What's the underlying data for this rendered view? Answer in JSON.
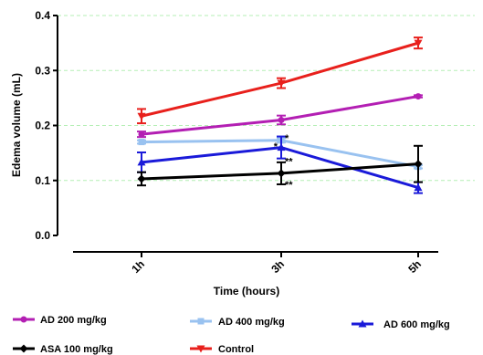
{
  "chart_data": {
    "type": "line",
    "categories": [
      "1h",
      "3h",
      "5h"
    ],
    "xlabel": "Time (hours)",
    "ylabel": "Edema volume (mL)",
    "ylim": [
      0.0,
      0.4
    ],
    "yticks": [
      "0.0",
      "0.1",
      "0.2",
      "0.3",
      "0.4"
    ],
    "grid": "horizontal dashed",
    "legend_position": "bottom",
    "series": [
      {
        "name": "AD 200 mg/kg",
        "color": "#b31fb3",
        "marker": "circle",
        "values": [
          0.184,
          0.21,
          0.253
        ],
        "errors": [
          0.005,
          0.008,
          0.002
        ]
      },
      {
        "name": "AD 400 mg/kg",
        "color": "#99c2f0",
        "marker": "square",
        "values": [
          0.17,
          0.173,
          0.125
        ],
        "errors": [
          0.003,
          0.004,
          0.003
        ]
      },
      {
        "name": "AD 600 mg/kg",
        "color": "#1a1ad9",
        "marker": "triangle-up",
        "values": [
          0.133,
          0.16,
          0.087
        ],
        "errors": [
          0.018,
          0.02,
          0.01
        ]
      },
      {
        "name": "ASA 100 mg/kg",
        "color": "#000000",
        "marker": "diamond",
        "values": [
          0.103,
          0.113,
          0.13
        ],
        "errors": [
          0.012,
          0.02,
          0.033
        ]
      },
      {
        "name": "Control",
        "color": "#e8201c",
        "marker": "triangle-down",
        "values": [
          0.217,
          0.277,
          0.35
        ],
        "errors": [
          0.013,
          0.009,
          0.01
        ]
      }
    ],
    "annotations": [
      {
        "text": "*",
        "category": "3h",
        "y": 0.178,
        "side": "right"
      },
      {
        "text": "*",
        "category": "3h",
        "y": 0.163,
        "side": "left"
      },
      {
        "text": "**",
        "category": "3h",
        "y": 0.135,
        "side": "right"
      },
      {
        "text": "**",
        "category": "3h",
        "y": 0.093,
        "side": "right"
      }
    ]
  }
}
